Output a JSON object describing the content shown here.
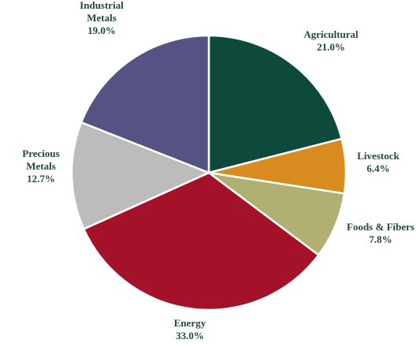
{
  "chart_data": {
    "type": "pie",
    "title": "",
    "slices": [
      {
        "label": [
          "Agricultural"
        ],
        "pct_label": "21.0%",
        "value": 21.0,
        "color": "#0d4a3c"
      },
      {
        "label": [
          "Livestock"
        ],
        "pct_label": "6.4%",
        "value": 6.4,
        "color": "#d88b1e"
      },
      {
        "label": [
          "Foods & Fibers"
        ],
        "pct_label": "7.8%",
        "value": 7.8,
        "color": "#afb071"
      },
      {
        "label": [
          "Energy"
        ],
        "pct_label": "33.0%",
        "value": 33.0,
        "color": "#a31228"
      },
      {
        "label": [
          "Precious",
          "Metals"
        ],
        "pct_label": "12.7%",
        "value": 12.7,
        "color": "#bcbcbc"
      },
      {
        "label": [
          "Industrial",
          "Metals"
        ],
        "pct_label": "19.0%",
        "value": 19.0,
        "color": "#555383"
      }
    ],
    "start_angle_deg": 0,
    "direction": "clockwise",
    "slice_border_color": "#ffffff"
  }
}
